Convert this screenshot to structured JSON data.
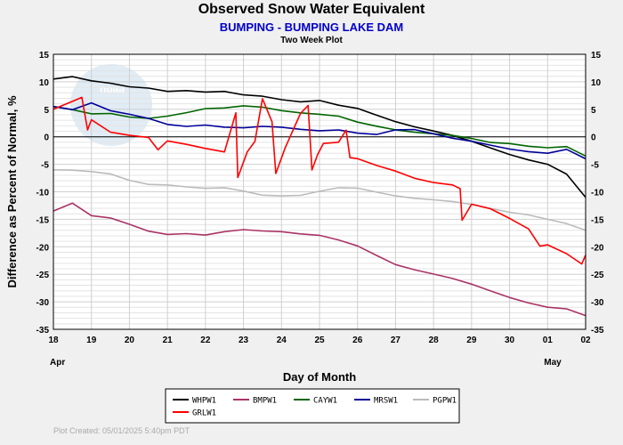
{
  "chart_data": {
    "type": "line",
    "title": "Observed Snow Water Equivalent",
    "subtitle": "BUMPING - BUMPING LAKE DAM",
    "plot_label": "Two Week Plot",
    "xlabel": "Day of Month",
    "ylabel": "Difference as Percent of Normal, %",
    "x_ticks": [
      "18",
      "19",
      "20",
      "21",
      "22",
      "23",
      "24",
      "25",
      "26",
      "27",
      "28",
      "29",
      "30",
      "01",
      "02"
    ],
    "x_month_labels": [
      {
        "at": "18",
        "label": "Apr"
      },
      {
        "at": "01",
        "label": "May"
      }
    ],
    "ylim": [
      -35,
      15
    ],
    "y_ticks": [
      15,
      10,
      5,
      0,
      -5,
      -10,
      -15,
      -20,
      -25,
      -30,
      -35
    ],
    "grid": true,
    "legend_position": "bottom",
    "series": [
      {
        "name": "WHPW1",
        "color": "#000000",
        "x": [
          0,
          0.5,
          1,
          1.5,
          2,
          2.5,
          3,
          3.5,
          4,
          4.5,
          5,
          5.5,
          6,
          6.5,
          7,
          7.5,
          8,
          8.5,
          9,
          9.5,
          10,
          10.5,
          11,
          11.5,
          12,
          12.5,
          13,
          13.5,
          14
        ],
        "y": [
          10.5,
          11,
          10,
          9.5,
          9,
          9,
          8.5,
          8.5,
          8,
          8,
          7.5,
          7.5,
          7,
          6.5,
          6.5,
          5.5,
          5,
          4,
          3,
          2,
          1,
          0,
          -1,
          -2,
          -3,
          -4,
          -5,
          -7,
          -11
        ]
      },
      {
        "name": "BMPW1",
        "color": "#aa3366",
        "x": [
          0,
          0.5,
          1,
          1.5,
          2,
          2.5,
          3,
          3.5,
          4,
          4.5,
          5,
          5.5,
          6,
          6.5,
          7,
          7.5,
          8,
          8.5,
          9,
          9.5,
          10,
          10.5,
          11,
          11.5,
          12,
          12.5,
          13,
          13.5,
          14
        ],
        "y": [
          -13.5,
          -12,
          -14.5,
          -15,
          -16,
          -17,
          -17.5,
          -17.5,
          -18,
          -17.5,
          -17,
          -17,
          -17,
          -17.5,
          -18,
          -19,
          -20,
          -21.5,
          -23,
          -24,
          -25,
          -26,
          -27,
          -28,
          -29,
          -30,
          -31,
          -31.5,
          -32.5
        ]
      },
      {
        "name": "CAYW1",
        "color": "#006600",
        "x": [
          0,
          0.5,
          1,
          1.5,
          2,
          2.5,
          3,
          3.5,
          4,
          4.5,
          5,
          5.5,
          6,
          6.5,
          7,
          7.5,
          8,
          8.5,
          9,
          9.5,
          10,
          10.5,
          11,
          11.5,
          12,
          12.5,
          13,
          13.5,
          14
        ],
        "y": [
          5.5,
          5,
          4,
          4,
          3.5,
          3.5,
          4,
          4.5,
          5,
          5,
          5.5,
          5.5,
          5,
          4.5,
          4,
          3.5,
          2.5,
          2,
          1.5,
          1,
          0.5,
          0,
          -0.5,
          -1,
          -1,
          -1.5,
          -2,
          -2,
          -3.5
        ]
      },
      {
        "name": "MRSW1",
        "color": "#000099",
        "x": [
          0,
          0.5,
          1,
          1.5,
          2,
          2.5,
          3,
          3.5,
          4,
          4.5,
          5,
          5.5,
          6,
          6.5,
          7,
          7.5,
          8,
          8.5,
          9,
          9.5,
          10,
          10.5,
          11,
          11.5,
          12,
          12.5,
          13,
          13.5,
          14
        ],
        "y": [
          5.5,
          5,
          6,
          4.5,
          4,
          3.5,
          2.5,
          2,
          2,
          1.5,
          1.5,
          2,
          2,
          1.5,
          1,
          1,
          0.5,
          0.5,
          1.5,
          1.5,
          0.5,
          -0.5,
          -1,
          -1.5,
          -2,
          -2.5,
          -3,
          -2.5,
          -4
        ]
      },
      {
        "name": "PGPW1",
        "color": "#bbbbbb",
        "x": [
          0,
          0.5,
          1,
          1.5,
          2,
          2.5,
          3,
          3.5,
          4,
          4.5,
          5,
          5.5,
          6,
          6.5,
          7,
          7.5,
          8,
          8.5,
          9,
          9.5,
          10,
          10.5,
          11,
          11.5,
          12,
          12.5,
          13,
          13.5,
          14
        ],
        "y": [
          -6,
          -6,
          -6.5,
          -7,
          -8,
          -8.5,
          -8.5,
          -9,
          -9.5,
          -9.5,
          -10,
          -10.5,
          -10.5,
          -10.5,
          -10,
          -9.5,
          -9.5,
          -10,
          -10.5,
          -11,
          -11.5,
          -12,
          -12.5,
          -13,
          -13.5,
          -14,
          -15,
          -16,
          -17
        ]
      },
      {
        "name": "GRLW1",
        "color": "#ff0000",
        "x": [
          0,
          0.5,
          0.75,
          0.9,
          1,
          1.5,
          2,
          2.5,
          2.75,
          3,
          3.5,
          4,
          4.5,
          4.8,
          4.85,
          5.1,
          5.3,
          5.5,
          5.75,
          5.85,
          6.1,
          6.5,
          6.7,
          6.8,
          6.95,
          7.1,
          7.5,
          7.7,
          7.8,
          8,
          8.5,
          9,
          9.5,
          10,
          10.5,
          10.7,
          10.75,
          11,
          11.5,
          12,
          12.5,
          12.8,
          13,
          13.5,
          13.9,
          14
        ],
        "y": [
          5,
          6.5,
          7,
          1,
          3,
          1,
          0.5,
          0,
          -2.5,
          -1,
          -1.5,
          -2,
          -2.5,
          4.5,
          -7.5,
          -3,
          -1,
          7,
          3,
          -6.5,
          -2,
          4,
          5.5,
          -6,
          -3,
          -1,
          -1,
          1,
          -4,
          -4,
          -5,
          -6,
          -7.5,
          -8.5,
          -9,
          -9.5,
          -15,
          -12,
          -13,
          -15,
          -17,
          -20,
          -19.5,
          -21,
          -23,
          -21.5
        ]
      }
    ]
  },
  "legend_items": [
    {
      "name": "WHPW1",
      "color": "#000000"
    },
    {
      "name": "BMPW1",
      "color": "#aa3366"
    },
    {
      "name": "CAYW1",
      "color": "#006600"
    },
    {
      "name": "MRSW1",
      "color": "#000099"
    },
    {
      "name": "PGPW1",
      "color": "#bbbbbb"
    },
    {
      "name": "GRLW1",
      "color": "#ff0000"
    }
  ],
  "footer": "Plot Created: 05/01/2025 5:40pm PDT",
  "watermark_text": "noaa"
}
